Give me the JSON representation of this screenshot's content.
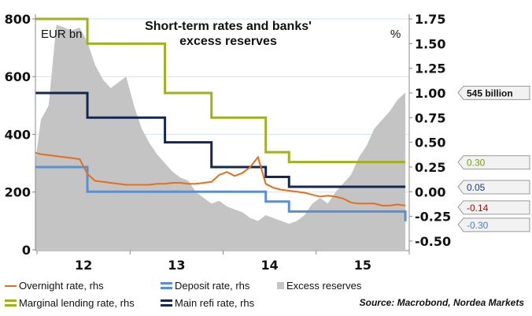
{
  "chart_data": {
    "type": "line",
    "title": "Short-term rates and banks' excess reserves",
    "title_lines": [
      "Short-term rates and banks'",
      "excess reserves"
    ],
    "left_axis": {
      "unit": "EUR bn",
      "ticks": [
        0,
        200,
        400,
        600,
        800
      ],
      "range": [
        0,
        800
      ]
    },
    "right_axis": {
      "unit": "%",
      "ticks": [
        -0.5,
        -0.25,
        0.0,
        0.25,
        0.5,
        0.75,
        1.0,
        1.25,
        1.5,
        1.75
      ],
      "tick_labels": [
        "-0.50",
        "-0.25",
        "0.00",
        "0.25",
        "0.50",
        "0.75",
        "1.00",
        "1.25",
        "1.50",
        "1.75"
      ],
      "range": [
        -0.5,
        1.75
      ]
    },
    "x_axis": {
      "tick_labels": [
        "12",
        "13",
        "14",
        "15"
      ],
      "range": [
        "2012-01",
        "2015-12"
      ]
    },
    "grid": "horizontal, left axis",
    "legend_placement": "bottom",
    "months": [
      "2011-12",
      "2012-01",
      "2012-02",
      "2012-03",
      "2012-04",
      "2012-05",
      "2012-06",
      "2012-07",
      "2012-08",
      "2012-09",
      "2012-10",
      "2012-11",
      "2012-12",
      "2013-01",
      "2013-02",
      "2013-03",
      "2013-04",
      "2013-05",
      "2013-06",
      "2013-07",
      "2013-08",
      "2013-09",
      "2013-10",
      "2013-11",
      "2013-12",
      "2014-01",
      "2014-02",
      "2014-03",
      "2014-04",
      "2014-05",
      "2014-06",
      "2014-07",
      "2014-08",
      "2014-09",
      "2014-10",
      "2014-11",
      "2014-12",
      "2015-01",
      "2015-02",
      "2015-03",
      "2015-04",
      "2015-05",
      "2015-06",
      "2015-07",
      "2015-08",
      "2015-09",
      "2015-10",
      "2015-11",
      "2015-12"
    ],
    "series": [
      {
        "name": "Excess reserves",
        "axis": "left",
        "kind": "area",
        "color": "#c4c4c4",
        "values": [
          250,
          450,
          500,
          780,
          770,
          760,
          770,
          720,
          640,
          590,
          560,
          580,
          600,
          500,
          420,
          370,
          330,
          300,
          270,
          250,
          240,
          200,
          180,
          160,
          170,
          150,
          140,
          130,
          110,
          100,
          120,
          110,
          100,
          90,
          100,
          120,
          160,
          180,
          160,
          200,
          230,
          260,
          320,
          360,
          420,
          450,
          480,
          520,
          545
        ],
        "end_label": "545 billion"
      },
      {
        "name": "Overnight rate, rhs",
        "axis": "right",
        "kind": "line",
        "color": "#e07020",
        "values": [
          0.4,
          0.38,
          0.37,
          0.36,
          0.35,
          0.34,
          0.33,
          0.18,
          0.11,
          0.1,
          0.09,
          0.08,
          0.07,
          0.07,
          0.07,
          0.07,
          0.08,
          0.08,
          0.09,
          0.09,
          0.08,
          0.08,
          0.09,
          0.1,
          0.17,
          0.2,
          0.16,
          0.19,
          0.25,
          0.35,
          0.08,
          0.04,
          0.02,
          0.01,
          0.0,
          -0.01,
          -0.03,
          -0.05,
          -0.04,
          -0.05,
          -0.07,
          -0.11,
          -0.12,
          -0.12,
          -0.12,
          -0.14,
          -0.14,
          -0.13,
          -0.14
        ],
        "end_label": "-0.14",
        "label_color": "#a01010"
      },
      {
        "name": "Marginal lending rate, rhs",
        "axis": "right",
        "kind": "step",
        "color": "#a0b020",
        "steps": [
          {
            "date": "2011-12",
            "value": 1.75
          },
          {
            "date": "2012-07",
            "value": 1.5
          },
          {
            "date": "2013-05",
            "value": 1.0
          },
          {
            "date": "2013-11",
            "value": 0.75
          },
          {
            "date": "2014-06",
            "value": 0.4
          },
          {
            "date": "2014-09",
            "value": 0.3
          }
        ],
        "end_label": "0.30",
        "label_color": "#7a9a20"
      },
      {
        "name": "Main refi rate, rhs",
        "axis": "right",
        "kind": "step",
        "color": "#14284e",
        "steps": [
          {
            "date": "2011-12",
            "value": 1.0
          },
          {
            "date": "2012-07",
            "value": 0.75
          },
          {
            "date": "2013-05",
            "value": 0.5
          },
          {
            "date": "2013-11",
            "value": 0.25
          },
          {
            "date": "2014-06",
            "value": 0.15
          },
          {
            "date": "2014-09",
            "value": 0.05
          }
        ],
        "end_label": "0.05",
        "label_color": "#1c3c7c"
      },
      {
        "name": "Deposit rate, rhs",
        "axis": "right",
        "kind": "step",
        "color": "#5b8fcf",
        "steps": [
          {
            "date": "2011-12",
            "value": 0.25
          },
          {
            "date": "2012-07",
            "value": 0.0
          },
          {
            "date": "2014-06",
            "value": -0.1
          },
          {
            "date": "2014-09",
            "value": -0.2
          },
          {
            "date": "2015-12",
            "value": -0.3
          }
        ],
        "end_label": "-0.30",
        "label_color": "#4a80c8"
      }
    ],
    "source": "Source: Macrobond, Nordea Markets"
  },
  "legend": [
    {
      "label": "Overnight rate, rhs",
      "color": "#e07020",
      "kind": "line"
    },
    {
      "label": "Deposit rate, rhs",
      "color": "#5b8fcf",
      "kind": "double"
    },
    {
      "label": "Excess reserves",
      "color": "#c4c4c4",
      "kind": "box"
    },
    {
      "label": "Marginal lending rate, rhs",
      "color": "#a0b020",
      "kind": "double"
    },
    {
      "label": "Main refi rate, rhs",
      "color": "#14284e",
      "kind": "double"
    }
  ]
}
